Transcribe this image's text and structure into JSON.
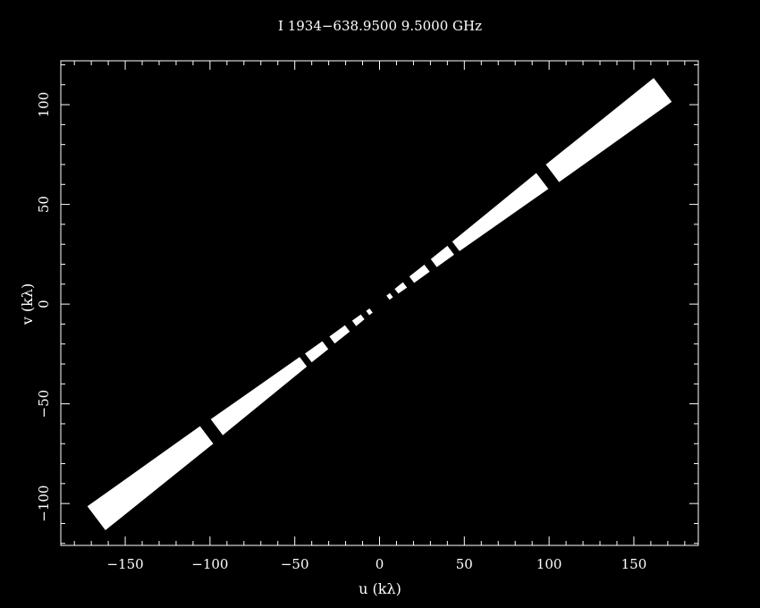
{
  "chart_data": {
    "type": "scatter",
    "title": "I 1934−638.9500  9.5000 GHz",
    "xlabel": "u (kλ)",
    "ylabel": "v (kλ)",
    "xlim": [
      -188,
      188
    ],
    "ylim": [
      -121,
      122
    ],
    "x_ticks": [
      -150,
      -100,
      -50,
      0,
      50,
      100,
      150
    ],
    "y_ticks": [
      -100,
      -50,
      0,
      50,
      100
    ],
    "x_tick_labels": [
      "−150",
      "−100",
      "−50",
      "0",
      "50",
      "100",
      "150"
    ],
    "y_tick_labels": [
      "−100",
      "−50",
      "0",
      "50",
      "100"
    ],
    "grid": false,
    "colors": {
      "background": "#000000",
      "foreground": "#ffffff",
      "points": "#ffffff"
    },
    "series": [
      {
        "segments": [
          {
            "u_start": 102,
            "u_end": 167,
            "width_start": 5.5,
            "width_end": 7.5
          },
          {
            "u_start": 45,
            "u_end": 96,
            "width_start": 3.0,
            "width_end": 5.0
          },
          {
            "u_start": 32,
            "u_end": 42,
            "width_start": 2.5,
            "width_end": 2.8
          },
          {
            "u_start": 19,
            "u_end": 28,
            "width_start": 2.0,
            "width_end": 2.2
          },
          {
            "u_start": 10,
            "u_end": 15,
            "width_start": 1.5,
            "width_end": 1.7
          },
          {
            "u_start": 5,
            "u_end": 7,
            "width_start": 1.3,
            "width_end": 1.3
          },
          {
            "u_start": -167,
            "u_end": -102,
            "width_start": 7.5,
            "width_end": 5.5
          },
          {
            "u_start": -96,
            "u_end": -45,
            "width_start": 5.0,
            "width_end": 3.0
          },
          {
            "u_start": -42,
            "u_end": -32,
            "width_start": 2.8,
            "width_end": 2.5
          },
          {
            "u_start": -28,
            "u_end": -19,
            "width_start": 2.2,
            "width_end": 2.0
          },
          {
            "u_start": -15,
            "u_end": -10,
            "width_start": 1.7,
            "width_end": 1.5
          },
          {
            "u_start": -7,
            "u_end": -5,
            "width_start": 1.3,
            "width_end": 1.3
          }
        ],
        "slope_v_per_u": 0.643
      }
    ]
  }
}
